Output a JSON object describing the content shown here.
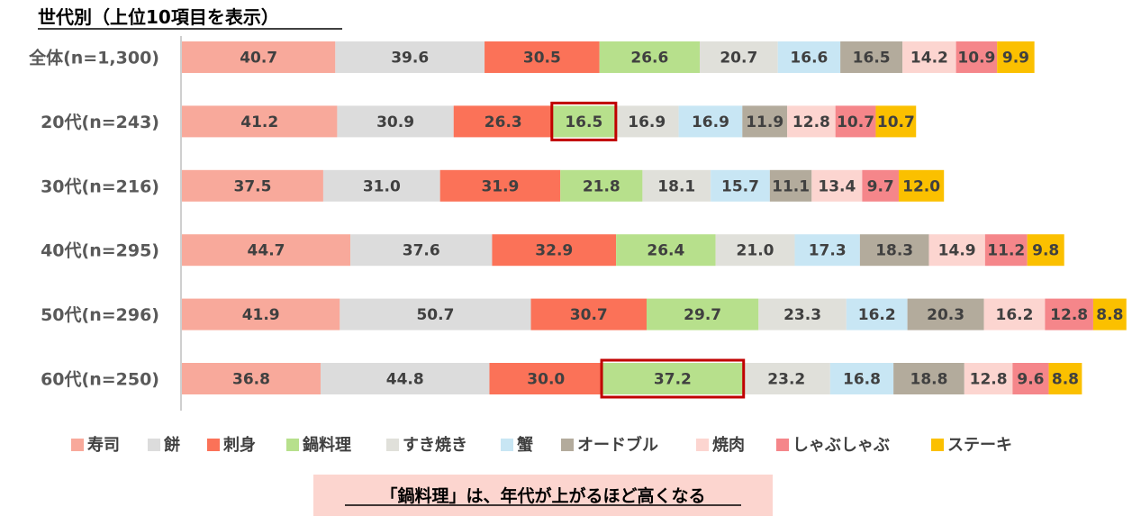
{
  "title": "世代別（上位10項目を表示）",
  "note": "「鍋料理」は、年代が上がるほど高くなる",
  "chart_data": {
    "type": "bar",
    "orientation": "horizontal",
    "stacked": true,
    "title": "世代別（上位10項目を表示）",
    "categories": [
      "全体(n=1,300)",
      "20代(n=243)",
      "30代(n=216)",
      "40代(n=295)",
      "50代(n=296)",
      "60代(n=250)"
    ],
    "series": [
      {
        "name": "寿司",
        "color": "#f8a99b",
        "values": [
          40.7,
          41.2,
          37.5,
          44.7,
          41.9,
          36.8
        ]
      },
      {
        "name": "餅",
        "color": "#dcdcdc",
        "values": [
          39.6,
          30.9,
          31.0,
          37.6,
          50.7,
          44.8
        ]
      },
      {
        "name": "刺身",
        "color": "#fb7258",
        "values": [
          30.5,
          26.3,
          31.9,
          32.9,
          30.7,
          30.0
        ]
      },
      {
        "name": "鍋料理",
        "color": "#b7e08c",
        "values": [
          26.6,
          16.5,
          21.8,
          26.4,
          29.7,
          37.2
        ]
      },
      {
        "name": "すき焼き",
        "color": "#e0e0da",
        "values": [
          20.7,
          16.9,
          18.1,
          21.0,
          23.3,
          23.2
        ]
      },
      {
        "name": "蟹",
        "color": "#c8e6f4",
        "values": [
          16.6,
          16.9,
          15.7,
          17.3,
          16.2,
          16.8
        ]
      },
      {
        "name": "オードブル",
        "color": "#b3ab9c",
        "values": [
          16.5,
          11.9,
          11.1,
          18.3,
          20.3,
          18.8
        ]
      },
      {
        "name": "焼肉",
        "color": "#fcd5d0",
        "values": [
          14.2,
          12.8,
          13.4,
          14.9,
          16.2,
          12.8
        ]
      },
      {
        "name": "しゃぶしゃぶ",
        "color": "#f5868a",
        "values": [
          10.9,
          10.7,
          9.7,
          11.2,
          12.8,
          9.6
        ]
      },
      {
        "name": "ステーキ",
        "color": "#fbc000",
        "values": [
          9.9,
          10.7,
          12.0,
          9.8,
          8.8,
          8.8
        ]
      }
    ],
    "highlight": {
      "series": "鍋料理",
      "categories": [
        "20代(n=243)",
        "60代(n=250)"
      ],
      "color": "#c00000"
    },
    "legend_position": "bottom",
    "grid": false
  }
}
